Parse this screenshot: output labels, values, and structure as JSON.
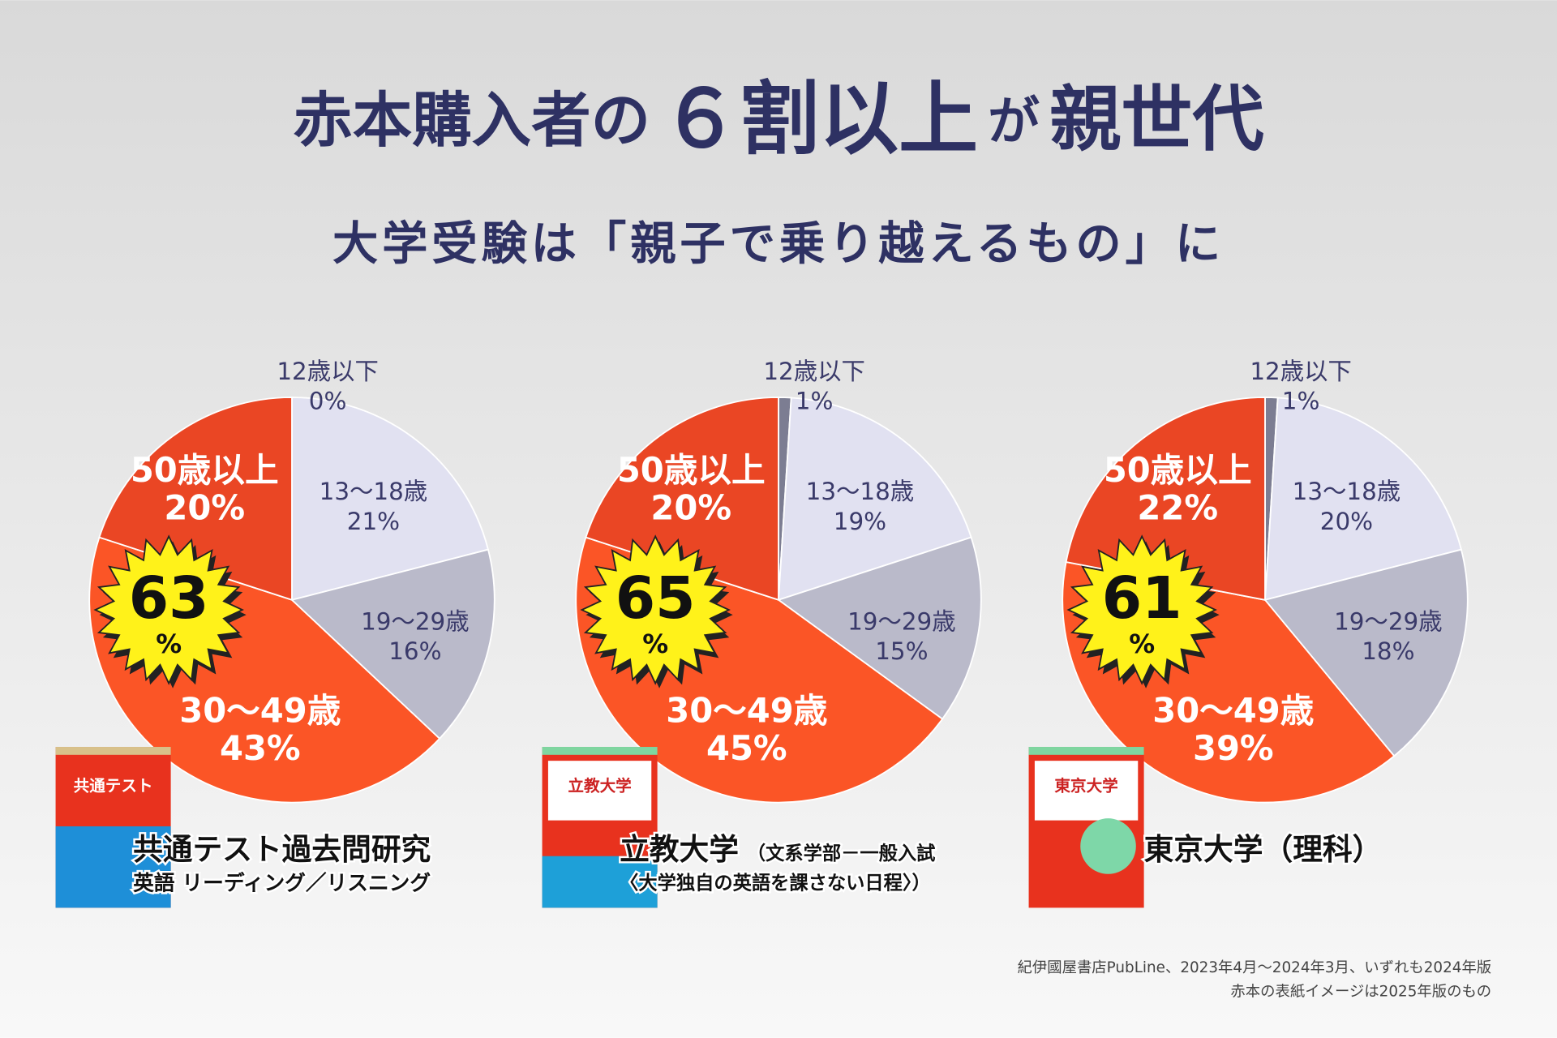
{
  "title": [
    "赤本購入者の",
    "６割以上",
    "が",
    "親世代"
  ],
  "subtitle": "大学受験は「親子で乗り越えるもの」に",
  "chart_data": [
    {
      "type": "pie",
      "categories": [
        "12歳以下",
        "13〜18歳",
        "19〜29歳",
        "30〜49歳",
        "50歳以上"
      ],
      "values": [
        0,
        21,
        16,
        43,
        20
      ],
      "value_labels": [
        "0%",
        "21%",
        "16%",
        "43%",
        "20%"
      ],
      "colors": [
        "#7c7d92",
        "#e1e1f1",
        "#babaca",
        "#fb5526",
        "#ea4624"
      ],
      "highlight": 63,
      "highlight_unit": "%",
      "cover_title": "共通テスト",
      "book_title": "共通テスト過去問研究",
      "book_subtitle": "英語 リーディング／リスニング"
    },
    {
      "type": "pie",
      "categories": [
        "12歳以下",
        "13〜18歳",
        "19〜29歳",
        "30〜49歳",
        "50歳以上"
      ],
      "values": [
        1,
        19,
        15,
        45,
        20
      ],
      "value_labels": [
        "1%",
        "19%",
        "15%",
        "45%",
        "20%"
      ],
      "colors": [
        "#7c7d92",
        "#e1e1f1",
        "#babaca",
        "#fb5526",
        "#ea4624"
      ],
      "highlight": 65,
      "highlight_unit": "%",
      "cover_title": "立教大学",
      "book_title": "立教大学",
      "book_subtitle": "（文系学部－一般入試",
      "book_subtitle2": "〈大学独自の英語を課さない日程〉）"
    },
    {
      "type": "pie",
      "categories": [
        "12歳以下",
        "13〜18歳",
        "19〜29歳",
        "30〜49歳",
        "50歳以上"
      ],
      "values": [
        1,
        20,
        18,
        39,
        22
      ],
      "value_labels": [
        "1%",
        "20%",
        "18%",
        "39%",
        "22%"
      ],
      "colors": [
        "#7c7d92",
        "#e1e1f1",
        "#babaca",
        "#fb5526",
        "#ea4624"
      ],
      "highlight": 61,
      "highlight_unit": "%",
      "cover_title": "東京大学",
      "book_title": "東京大学（理科）"
    }
  ],
  "source": [
    "紀伊國屋書店PubLine、2023年4月～2024年3月、いずれも2024年版",
    "赤本の表紙イメージは2025年版のもの"
  ]
}
